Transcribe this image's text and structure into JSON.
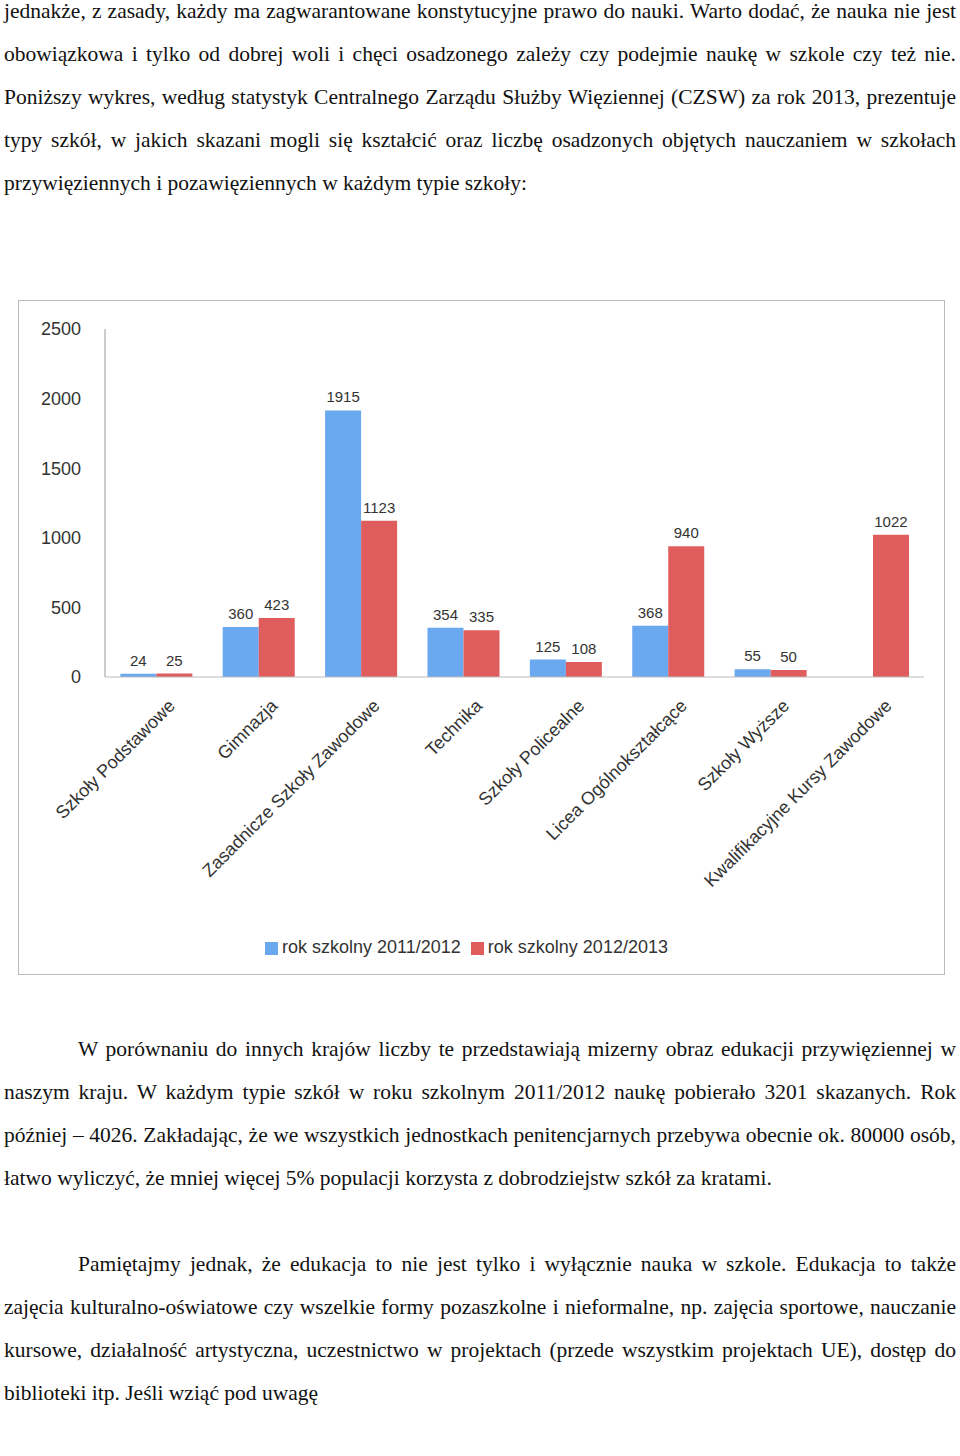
{
  "text_top": "jednakże, z zasady, każdy ma zagwarantowane konstytucyjne prawo do nauki. Warto dodać, że nauka nie jest obowiązkowa i tylko od dobrej woli i chęci osadzonego zależy czy podejmie naukę w szkole czy też nie. Poniższy wykres, według statystyk Centralnego Zarządu Służby Więziennej (CZSW) za rok 2013, prezentuje typy szkół, w jakich skazani mogli się kształcić oraz liczbę osadzonych objętych nauczaniem w szkołach przywięziennych i pozawięziennych w każdym typie szkoły:",
  "chart_data": {
    "type": "bar",
    "categories": [
      "Szkoły Podstawowe",
      "Gimnazja",
      "Zasadnicze Szkoły Zawodowe",
      "Technika",
      "Szkoły Policealne",
      "Licea Ogólnokształcące",
      "Szkoły Wyższe",
      "Kwalifikacyjne Kursy Zawodowe"
    ],
    "series": [
      {
        "name": "rok szkolny 2011/2012",
        "color": "#6aa8f0",
        "values": [
          24,
          360,
          1915,
          354,
          125,
          368,
          55,
          0
        ]
      },
      {
        "name": "rok szkolny 2012/2013",
        "color": "#e05d5d",
        "values": [
          25,
          423,
          1123,
          335,
          108,
          940,
          50,
          1022
        ]
      }
    ],
    "ylim": [
      0,
      2500
    ],
    "yticks": [
      0,
      500,
      1000,
      1500,
      2000,
      2500
    ],
    "grid": false,
    "data_labels": true,
    "legend": "bottom"
  },
  "text_bottom": [
    "W porównaniu do innych krajów liczby te przedstawiają mizerny obraz edukacji przywięziennej w naszym kraju. W każdym typie szkół w roku szkolnym 2011/2012 naukę pobierało 3201 skazanych. Rok później – 4026. Zakładając, że we wszystkich jednostkach penitencjarnych przebywa obecnie ok. 80000 osób, łatwo wyliczyć, że mniej więcej 5% populacji korzysta z dobrodziejstw szkół za kratami.",
    "Pamiętajmy jednak, że edukacja to nie jest tylko i wyłącznie nauka w szkole. Edukacja to także zajęcia kulturalno-oświatowe czy wszelkie formy pozaszkolne i nieformalne, np. zajęcia sportowe, nauczanie kursowe, działalność artystyczna, uczestnictwo w projektach (przede wszystkim projektach UE), dostęp do biblioteki itp. Jeśli wziąć pod uwagę"
  ]
}
